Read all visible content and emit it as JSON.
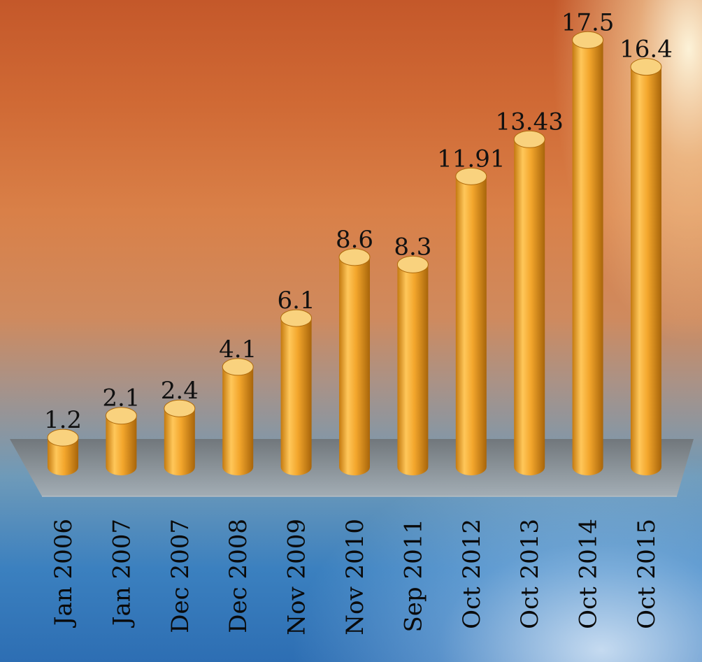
{
  "colors": {
    "bar_light": "#ffc75a",
    "bar_mid": "#f3a62c",
    "bar_dark": "#b06b0c",
    "bar_top": "#f9d27e",
    "floor": "#7f8488"
  },
  "chart_data": {
    "type": "bar",
    "categories": [
      "Jan 2006",
      "Jan 2007",
      "Dec 2007",
      "Dec 2008",
      "Nov 2009",
      "Nov 2010",
      "Sep 2011",
      "Oct 2012",
      "Oct 2013",
      "Oct 2014",
      "Oct 2015"
    ],
    "values": [
      1.2,
      2.1,
      2.4,
      4.1,
      6.1,
      8.6,
      8.3,
      11.91,
      13.43,
      17.5,
      16.4
    ],
    "value_labels": [
      "1.2",
      "2.1",
      "2.4",
      "4.1",
      "6.1",
      "8.6",
      "8.3",
      "11.91",
      "13.43",
      "17.5",
      "16.4"
    ],
    "title": "",
    "xlabel": "",
    "ylabel": "",
    "ylim": [
      0,
      18
    ],
    "grid": false,
    "legend": "none"
  }
}
